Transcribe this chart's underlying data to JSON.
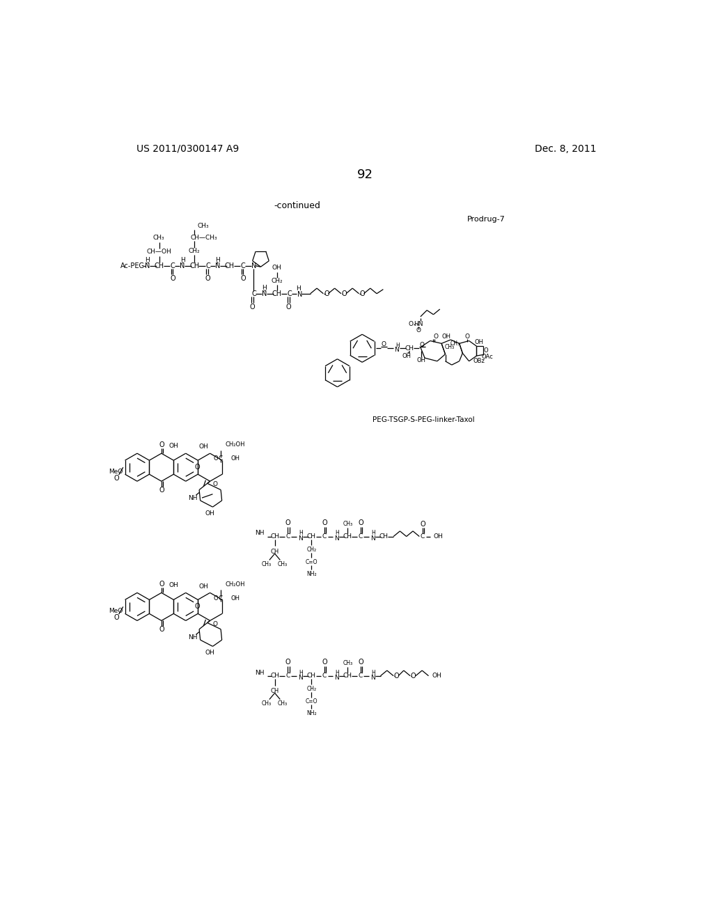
{
  "background_color": "#ffffff",
  "header_left": "US 2011/0300147 A9",
  "header_right": "Dec. 8, 2011",
  "page_number": "92",
  "continued_label": "-continued",
  "prodrug_label": "Prodrug-7",
  "caption_taxol": "PEG-TSGP-S-PEG-linker-Taxol"
}
